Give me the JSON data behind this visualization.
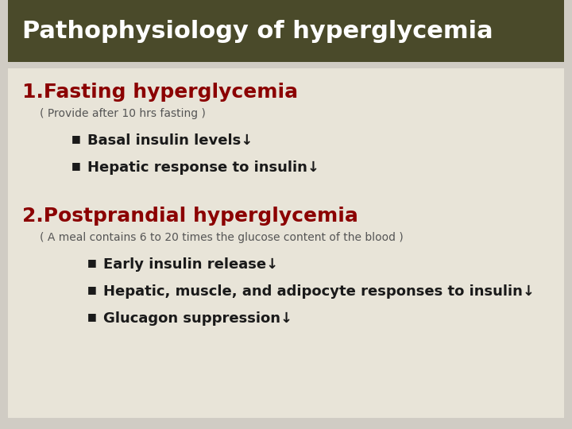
{
  "title": "Pathophysiology of hyperglycemia",
  "title_bg_color": "#4a4a2a",
  "title_text_color": "#ffffff",
  "content_bg_color": "#e8e4d8",
  "outer_bg_color": "#d0ccc4",
  "section1_heading": "1.Fasting hyperglycemia",
  "section1_subheading": "( Provide after 10 hrs fasting )",
  "section1_bullets": [
    "Basal insulin levels↓",
    "Hepatic response to insulin↓"
  ],
  "section2_heading": "2.Postprandial hyperglycemia",
  "section2_subheading": "( A meal contains 6 to 20 times the glucose content of the blood )",
  "section2_bullets": [
    "Early insulin release↓",
    "Hepatic, muscle, and adipocyte responses to insulin↓",
    "Glucagon suppression↓"
  ],
  "heading_color": "#8b0000",
  "subheading_color": "#555555",
  "bullet_text_color": "#1a1a1a",
  "bullet_marker": "■",
  "bullet_marker_color": "#1a1a1a"
}
